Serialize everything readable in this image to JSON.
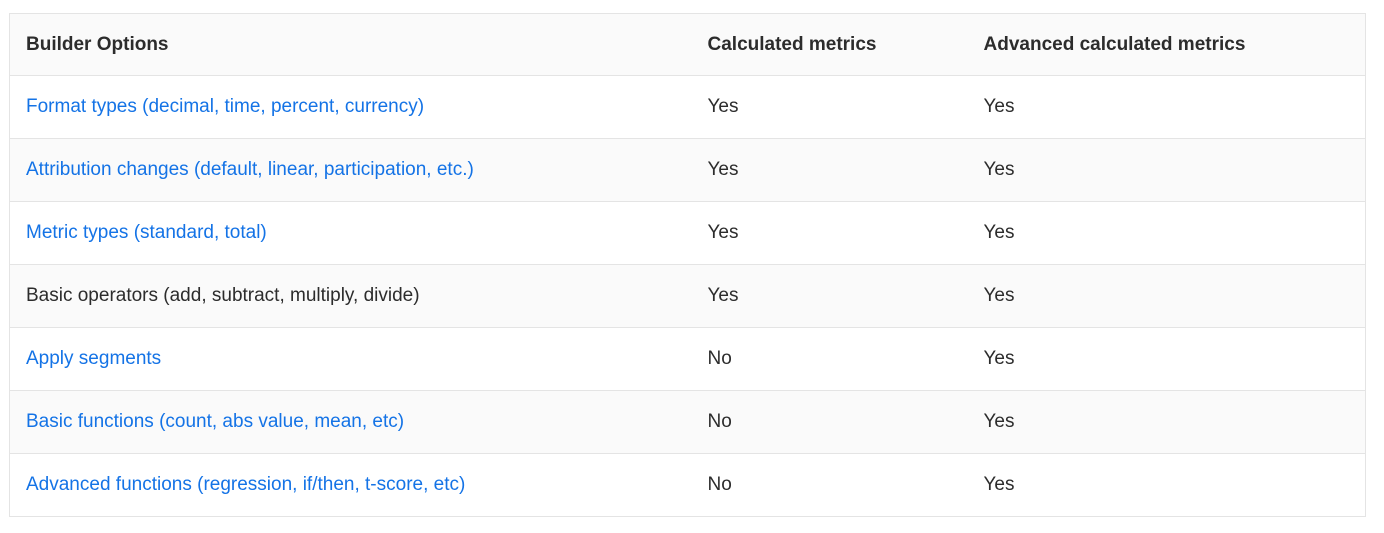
{
  "table": {
    "columns": [
      {
        "label": "Builder Options"
      },
      {
        "label": "Calculated metrics"
      },
      {
        "label": "Advanced calculated metrics"
      }
    ],
    "rows": [
      {
        "option": "Format types (decimal, time, percent, currency)",
        "is_link": true,
        "calculated_metrics": "Yes",
        "advanced_calculated_metrics": "Yes"
      },
      {
        "option": "Attribution changes (default, linear, participation, etc.)",
        "is_link": true,
        "calculated_metrics": "Yes",
        "advanced_calculated_metrics": "Yes"
      },
      {
        "option": "Metric types (standard, total)",
        "is_link": true,
        "calculated_metrics": "Yes",
        "advanced_calculated_metrics": "Yes"
      },
      {
        "option": "Basic operators (add, subtract, multiply, divide)",
        "is_link": false,
        "calculated_metrics": "Yes",
        "advanced_calculated_metrics": "Yes"
      },
      {
        "option": "Apply segments",
        "is_link": true,
        "calculated_metrics": "No",
        "advanced_calculated_metrics": "Yes"
      },
      {
        "option": "Basic functions (count, abs value, mean, etc)",
        "is_link": true,
        "calculated_metrics": "No",
        "advanced_calculated_metrics": "Yes"
      },
      {
        "option": "Advanced functions (regression, if/then, t-score, etc)",
        "is_link": true,
        "calculated_metrics": "No",
        "advanced_calculated_metrics": "Yes"
      }
    ],
    "colors": {
      "link_blue": "#1473e6",
      "text_dark": "#2c2c2c",
      "border": "#e4e4e4",
      "stripe": "#fafafa"
    }
  }
}
